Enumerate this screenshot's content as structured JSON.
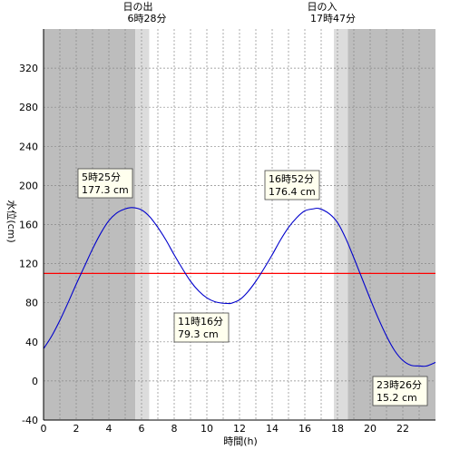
{
  "chart_data": {
    "type": "line",
    "xlabel": "時間(h)",
    "ylabel": "水位(cm)",
    "xlim": [
      0,
      24
    ],
    "ylim": [
      -40,
      360
    ],
    "x_ticks": [
      0,
      2,
      4,
      6,
      8,
      10,
      12,
      14,
      16,
      18,
      20,
      22
    ],
    "y_ticks": [
      -40,
      0,
      40,
      80,
      120,
      160,
      200,
      240,
      280,
      320
    ],
    "grid": true,
    "reference_line": {
      "value": 110,
      "color": "#ff0000"
    },
    "sunrise": {
      "label": "日の出",
      "time": "6時28分",
      "hour": 6.47
    },
    "sunset": {
      "label": "日の入",
      "time": "17時47分",
      "hour": 17.78
    },
    "series": [
      {
        "color": "#0000cc",
        "x": [
          0,
          0.5,
          1,
          1.5,
          2,
          2.5,
          3,
          3.5,
          4,
          4.5,
          5,
          5.42,
          6,
          6.5,
          7,
          7.5,
          8,
          8.5,
          9,
          9.5,
          10,
          10.5,
          11,
          11.27,
          11.5,
          12,
          12.5,
          13,
          13.5,
          14,
          14.5,
          15,
          15.5,
          16,
          16.5,
          16.87,
          17.5,
          18,
          18.5,
          19,
          19.5,
          20,
          20.5,
          21,
          21.5,
          22,
          22.5,
          23,
          23.43,
          24
        ],
        "y": [
          33,
          46,
          62,
          80,
          99,
          117,
          135,
          151,
          164,
          172,
          176,
          177.3,
          175,
          168,
          157,
          144,
          129,
          115,
          102,
          92,
          85,
          81,
          79.5,
          79.3,
          79.5,
          83,
          91,
          102,
          115,
          129,
          144,
          157,
          167,
          174,
          176,
          176.4,
          171,
          162,
          146,
          126,
          105,
          84,
          64,
          46,
          31,
          21,
          16,
          15.4,
          15.2,
          19
        ]
      }
    ],
    "annotations": [
      {
        "time": "5時25分",
        "value": "177.3 cm"
      },
      {
        "time": "11時16分",
        "value": "79.3 cm"
      },
      {
        "time": "16時52分",
        "value": "176.4 cm"
      },
      {
        "time": "23時26分",
        "value": "15.2 cm"
      }
    ]
  }
}
